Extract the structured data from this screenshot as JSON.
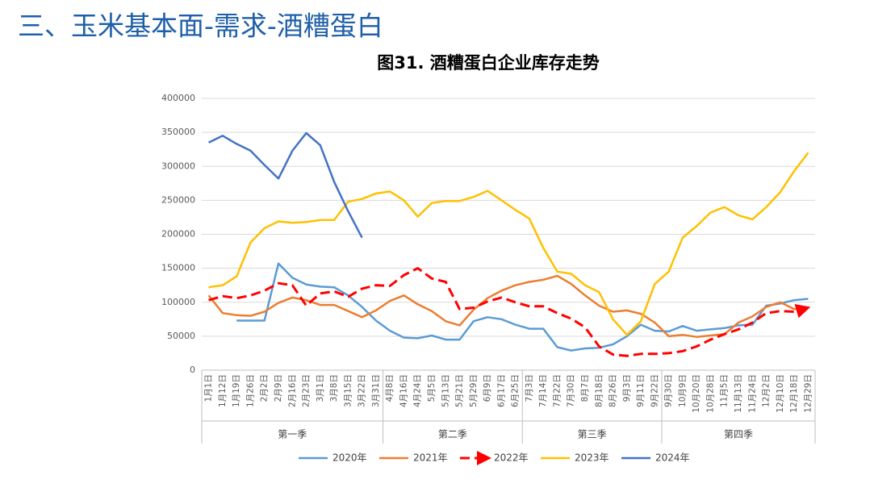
{
  "header": "三、玉米基本面-需求-酒糟蛋白",
  "chart_data": {
    "type": "line",
    "title": "图31. 酒糟蛋白企业库存走势",
    "categories": [
      "1月1日",
      "1月12日",
      "1月19日",
      "1月26日",
      "2月2日",
      "2月9日",
      "2月16日",
      "2月23日",
      "3月1日",
      "3月8日",
      "3月15日",
      "3月22日",
      "3月31日",
      "4月8日",
      "4月16日",
      "4月24日",
      "5月5日",
      "5月13日",
      "5月21日",
      "5月29日",
      "6月9日",
      "6月17日",
      "6月25日",
      "7月3日",
      "7月14日",
      "7月22日",
      "7月30日",
      "8月7日",
      "8月18日",
      "8月26日",
      "9月3日",
      "9月11日",
      "9月22日",
      "9月30日",
      "10月9日",
      "10月20日",
      "10月28日",
      "11月5日",
      "11月13日",
      "11月24日",
      "12月2日",
      "12月10日",
      "12月18日",
      "12月29日"
    ],
    "groups": [
      {
        "label": "第一季",
        "range": [
          0,
          12
        ]
      },
      {
        "label": "第二季",
        "range": [
          13,
          22
        ]
      },
      {
        "label": "第三季",
        "range": [
          23,
          32
        ]
      },
      {
        "label": "第四季",
        "range": [
          33,
          43
        ]
      }
    ],
    "series": [
      {
        "name": "2020年",
        "color": "#5b9bd5",
        "line_style": "solid",
        "values": [
          null,
          null,
          73000,
          73000,
          73000,
          157000,
          136000,
          126000,
          123000,
          122000,
          110000,
          93000,
          73000,
          58000,
          48000,
          47000,
          51000,
          45000,
          45000,
          72000,
          78000,
          75000,
          67000,
          61000,
          61000,
          34000,
          29000,
          32000,
          33000,
          38000,
          50000,
          67000,
          58000,
          57000,
          65000,
          58000,
          60000,
          62000,
          66000,
          67000,
          95000,
          98000,
          103000,
          105000
        ]
      },
      {
        "name": "2021年",
        "color": "#ed7d31",
        "line_style": "solid",
        "values": [
          110000,
          84000,
          81000,
          80000,
          86000,
          99000,
          107000,
          103000,
          96000,
          96000,
          87000,
          78000,
          88000,
          102000,
          110000,
          97000,
          87000,
          72000,
          66000,
          89000,
          106000,
          117000,
          125000,
          130000,
          133000,
          139000,
          127000,
          110000,
          95000,
          86000,
          88000,
          83000,
          70000,
          50000,
          52000,
          49000,
          51000,
          53000,
          70000,
          79000,
          93000,
          100000,
          90000,
          92000
        ]
      },
      {
        "name": "2022年",
        "color": "#ff0000",
        "line_style": "dashed",
        "end_arrow": true,
        "values": [
          103000,
          109000,
          106000,
          110000,
          117000,
          128000,
          125000,
          95000,
          113000,
          116000,
          108000,
          120000,
          125000,
          124000,
          140000,
          150000,
          135000,
          130000,
          90000,
          92000,
          101000,
          107000,
          100000,
          94000,
          94000,
          84000,
          76000,
          63000,
          35000,
          23000,
          21000,
          24000,
          24000,
          25000,
          28000,
          35000,
          45000,
          53000,
          60000,
          70000,
          84000,
          87000,
          86000,
          92000
        ]
      },
      {
        "name": "2023年",
        "color": "#ffc000",
        "line_style": "solid",
        "values": [
          122000,
          125000,
          138000,
          188000,
          209000,
          219000,
          217000,
          218000,
          221000,
          221000,
          248000,
          252000,
          260000,
          263000,
          250000,
          226000,
          246000,
          249000,
          249000,
          255000,
          264000,
          250000,
          236000,
          223000,
          180000,
          145000,
          142000,
          125000,
          115000,
          75000,
          52000,
          72000,
          127000,
          145000,
          195000,
          212000,
          232000,
          240000,
          228000,
          222000,
          240000,
          262000,
          293000,
          320000
        ]
      },
      {
        "name": "2024年",
        "color": "#4472c4",
        "line_style": "solid",
        "values": [
          335000,
          345000,
          333000,
          323000,
          302000,
          282000,
          323000,
          349000,
          331000,
          277000,
          234000,
          195000,
          null,
          null,
          null,
          null,
          null,
          null,
          null,
          null,
          null,
          null,
          null,
          null,
          null,
          null,
          null,
          null,
          null,
          null,
          null,
          null,
          null,
          null,
          null,
          null,
          null,
          null,
          null,
          null,
          null,
          null,
          null,
          null
        ]
      }
    ],
    "ylim": [
      0,
      400000
    ],
    "yticks": [
      0,
      50000,
      100000,
      150000,
      200000,
      250000,
      300000,
      350000,
      400000
    ],
    "grid": true,
    "legend": "bottom"
  }
}
